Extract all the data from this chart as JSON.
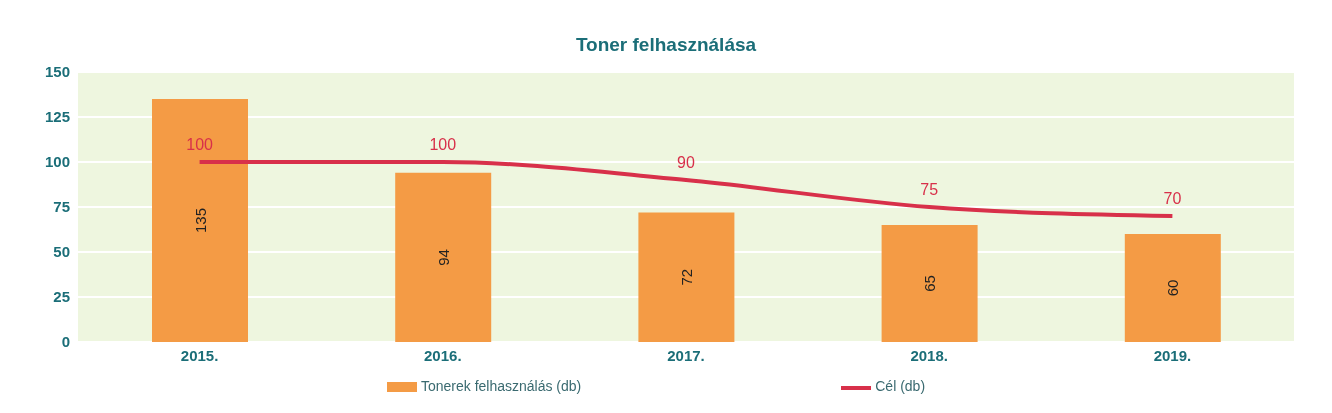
{
  "chart_data": {
    "type": "bar",
    "title": "Toner felhasználása",
    "categories": [
      "2015.",
      "2016.",
      "2017.",
      "2018.",
      "2019."
    ],
    "series": [
      {
        "name": "Tonerek felhasználás (db)",
        "color": "#f49b45",
        "values": [
          135,
          94,
          72,
          65,
          60
        ]
      },
      {
        "type": "line",
        "name": "Cél (db)",
        "color": "#d8304a",
        "values": [
          100,
          100,
          90,
          75,
          70
        ]
      }
    ],
    "ylim": [
      0,
      150
    ],
    "yticks": [
      0,
      25,
      50,
      75,
      100,
      125,
      150
    ],
    "grid": "y",
    "legend": "bottom",
    "data_labels": true,
    "marker": "none"
  }
}
